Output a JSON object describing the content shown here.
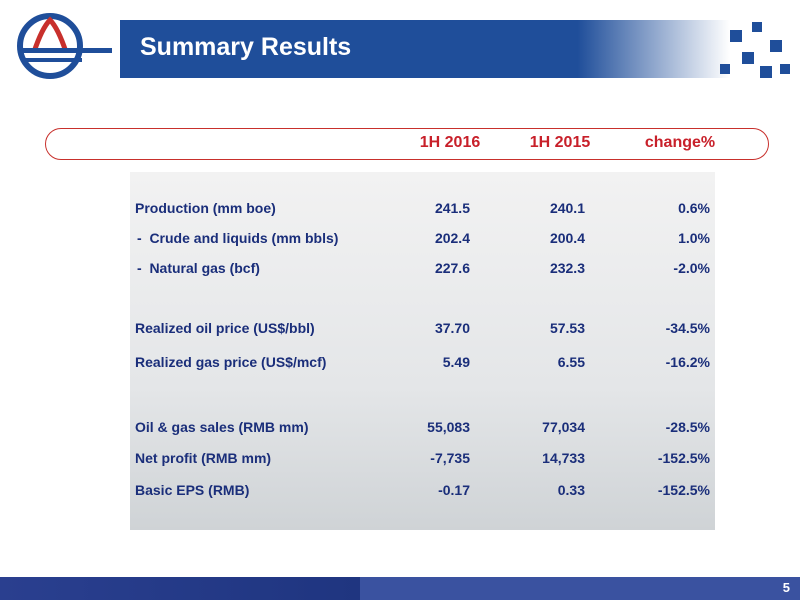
{
  "header": {
    "title": "Summary Results"
  },
  "table": {
    "columns": [
      "1H 2016",
      "1H 2015",
      "change%"
    ],
    "rows": [
      [
        "Production (mm boe)",
        "241.5",
        "240.1",
        "0.6%"
      ],
      [
        "-  Crude and liquids (mm bbls)",
        "202.4",
        "200.4",
        "1.0%"
      ],
      [
        "-  Natural gas (bcf)",
        "227.6",
        "232.3",
        "-2.0%"
      ],
      [
        "Realized oil price (US$/bbl)",
        "37.70",
        "57.53",
        "-34.5%"
      ],
      [
        "Realized gas price (US$/mcf)",
        "5.49",
        "6.55",
        "-16.2%"
      ],
      [
        "Oil & gas sales (RMB mm)",
        "55,083",
        "77,034",
        "-28.5%"
      ],
      [
        "Net profit (RMB mm)",
        "-7,735",
        "14,733",
        "-152.5%"
      ],
      [
        "Basic EPS (RMB)",
        "-0.17",
        "0.33",
        "-152.5%"
      ]
    ]
  },
  "footer": {
    "page": "5"
  }
}
